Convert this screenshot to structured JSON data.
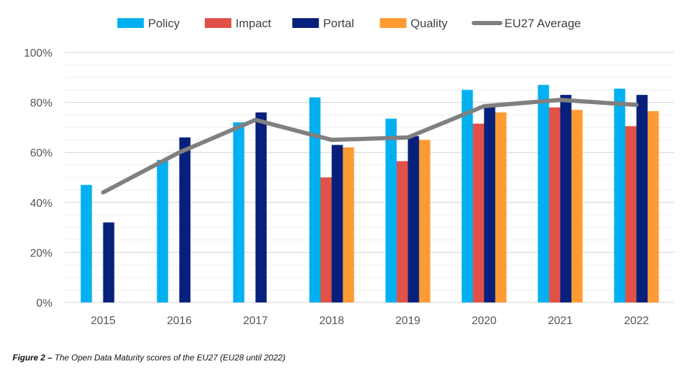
{
  "chart_data": {
    "type": "bar",
    "categories": [
      "2015",
      "2016",
      "2017",
      "2018",
      "2019",
      "2020",
      "2021",
      "2022"
    ],
    "series": [
      {
        "name": "Policy",
        "kind": "bar",
        "color": "#00B0F0",
        "values": [
          47,
          57,
          72,
          82,
          73.5,
          85,
          87,
          85.5
        ]
      },
      {
        "name": "Impact",
        "kind": "bar",
        "color": "#E15148",
        "values": [
          null,
          null,
          null,
          50,
          56.5,
          71.5,
          78,
          70.5
        ]
      },
      {
        "name": "Portal",
        "kind": "bar",
        "color": "#06207B",
        "values": [
          32,
          66,
          76,
          63,
          66.5,
          78.5,
          83,
          83
        ]
      },
      {
        "name": "Quality",
        "kind": "bar",
        "color": "#FF9B33",
        "values": [
          null,
          null,
          null,
          62,
          65,
          76,
          77,
          76.5
        ]
      },
      {
        "name": "EU27 Average",
        "kind": "line",
        "color": "#808080",
        "values": [
          44,
          60,
          73,
          65,
          66,
          78.5,
          81,
          79
        ]
      }
    ],
    "ylim": [
      0,
      100
    ],
    "yticks": [
      0,
      20,
      40,
      60,
      80,
      100
    ],
    "ytick_labels": [
      "0%",
      "20%",
      "40%",
      "60%",
      "80%",
      "100%"
    ],
    "grid": true,
    "legend_position": "top",
    "xlabel": "",
    "ylabel": ""
  },
  "caption": {
    "label": "Figure 2 –",
    "text": " The Open Data Maturity scores of the EU27 (EU28 until 2022)"
  }
}
